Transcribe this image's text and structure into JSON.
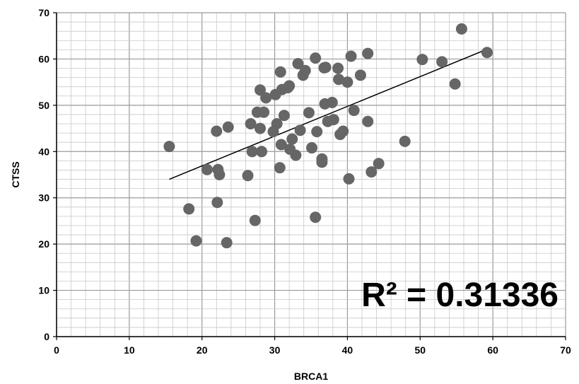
{
  "chart_data": {
    "type": "scatter",
    "title": "",
    "xlabel": "BRCA1",
    "ylabel": "CTSS",
    "xlim": [
      0,
      70
    ],
    "ylim": [
      0,
      70
    ],
    "x_ticks": [
      "0",
      "10",
      "20",
      "30",
      "40",
      "50",
      "60",
      "70"
    ],
    "y_ticks": [
      "0",
      "10",
      "20",
      "30",
      "40",
      "50",
      "60",
      "70"
    ],
    "grid": true,
    "annotation": "R² = 0.31336",
    "marker_color": "#666666",
    "trendline": {
      "x": [
        15.5,
        59.5
      ],
      "y": [
        34.0,
        62.3
      ]
    },
    "points": [
      {
        "x": 15.5,
        "y": 41.1
      },
      {
        "x": 18.2,
        "y": 27.6
      },
      {
        "x": 19.2,
        "y": 20.7
      },
      {
        "x": 20.7,
        "y": 36.1
      },
      {
        "x": 22.0,
        "y": 44.4
      },
      {
        "x": 22.1,
        "y": 29.0
      },
      {
        "x": 22.2,
        "y": 36.1
      },
      {
        "x": 22.4,
        "y": 35.0
      },
      {
        "x": 23.4,
        "y": 20.3
      },
      {
        "x": 23.6,
        "y": 45.3
      },
      {
        "x": 26.3,
        "y": 34.8
      },
      {
        "x": 26.7,
        "y": 46.0
      },
      {
        "x": 26.9,
        "y": 40.0
      },
      {
        "x": 27.3,
        "y": 25.1
      },
      {
        "x": 27.6,
        "y": 48.5
      },
      {
        "x": 28.0,
        "y": 53.3
      },
      {
        "x": 28.0,
        "y": 45.0
      },
      {
        "x": 28.2,
        "y": 40.0
      },
      {
        "x": 28.5,
        "y": 48.5
      },
      {
        "x": 28.8,
        "y": 51.6
      },
      {
        "x": 29.8,
        "y": 44.3
      },
      {
        "x": 30.1,
        "y": 52.3
      },
      {
        "x": 30.3,
        "y": 46.0
      },
      {
        "x": 30.7,
        "y": 36.5
      },
      {
        "x": 30.8,
        "y": 57.2
      },
      {
        "x": 30.9,
        "y": 41.5
      },
      {
        "x": 31.0,
        "y": 53.4
      },
      {
        "x": 31.3,
        "y": 47.8
      },
      {
        "x": 31.8,
        "y": 53.8
      },
      {
        "x": 32.0,
        "y": 54.2
      },
      {
        "x": 32.1,
        "y": 40.5
      },
      {
        "x": 32.4,
        "y": 42.7
      },
      {
        "x": 32.9,
        "y": 39.2
      },
      {
        "x": 33.2,
        "y": 59.0
      },
      {
        "x": 33.5,
        "y": 44.6
      },
      {
        "x": 33.9,
        "y": 56.5
      },
      {
        "x": 34.2,
        "y": 57.5
      },
      {
        "x": 34.7,
        "y": 48.4
      },
      {
        "x": 35.1,
        "y": 40.8
      },
      {
        "x": 35.6,
        "y": 60.2
      },
      {
        "x": 35.6,
        "y": 25.8
      },
      {
        "x": 35.8,
        "y": 44.3
      },
      {
        "x": 36.5,
        "y": 38.4
      },
      {
        "x": 36.5,
        "y": 37.7
      },
      {
        "x": 36.8,
        "y": 58.1
      },
      {
        "x": 36.9,
        "y": 50.3
      },
      {
        "x": 37.0,
        "y": 58.2
      },
      {
        "x": 37.3,
        "y": 46.5
      },
      {
        "x": 37.9,
        "y": 50.6
      },
      {
        "x": 38.1,
        "y": 46.9
      },
      {
        "x": 38.7,
        "y": 58.0
      },
      {
        "x": 38.8,
        "y": 55.6
      },
      {
        "x": 39.0,
        "y": 43.7
      },
      {
        "x": 39.4,
        "y": 44.4
      },
      {
        "x": 40.0,
        "y": 55.0
      },
      {
        "x": 40.2,
        "y": 34.1
      },
      {
        "x": 40.5,
        "y": 60.6
      },
      {
        "x": 40.9,
        "y": 48.9
      },
      {
        "x": 41.8,
        "y": 56.5
      },
      {
        "x": 42.8,
        "y": 61.2
      },
      {
        "x": 42.8,
        "y": 46.5
      },
      {
        "x": 43.3,
        "y": 35.6
      },
      {
        "x": 44.3,
        "y": 37.4
      },
      {
        "x": 47.9,
        "y": 42.2
      },
      {
        "x": 50.3,
        "y": 59.9
      },
      {
        "x": 53.0,
        "y": 59.4
      },
      {
        "x": 54.8,
        "y": 54.6
      },
      {
        "x": 55.7,
        "y": 66.5
      },
      {
        "x": 59.2,
        "y": 61.4
      }
    ]
  }
}
